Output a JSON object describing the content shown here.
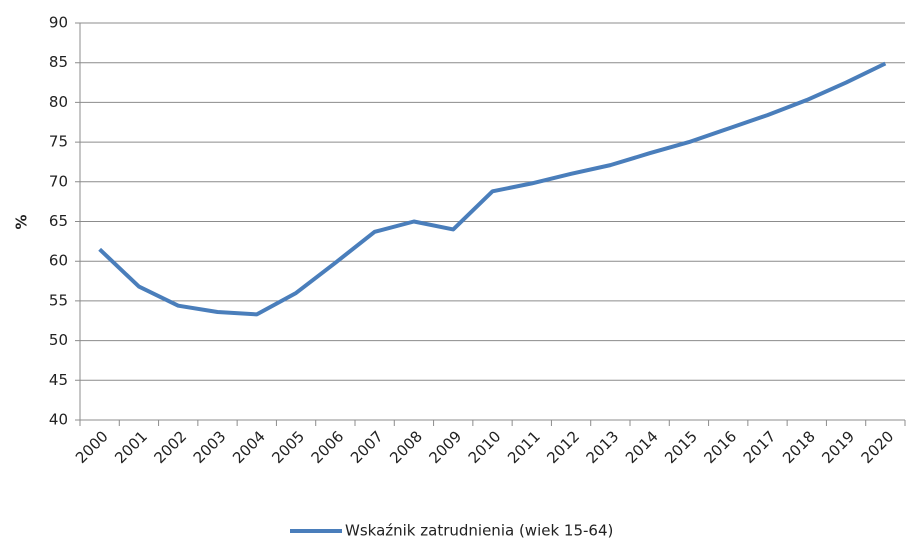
{
  "chart_data": {
    "type": "line",
    "y_label": "%",
    "categories": [
      "2000",
      "2001",
      "2002",
      "2003",
      "2004",
      "2005",
      "2006",
      "2007",
      "2008",
      "2009",
      "2010",
      "2011",
      "2012",
      "2013",
      "2014",
      "2015",
      "2016",
      "2017",
      "2018",
      "2019",
      "2020"
    ],
    "series": [
      {
        "name": "Wskaźnik zatrudnienia (wiek 15-64)",
        "color": "#4a7ebb",
        "values": [
          61.5,
          56.8,
          54.4,
          53.6,
          53.3,
          56,
          59.8,
          63.7,
          65,
          64,
          68.8,
          69.8,
          71,
          72.1,
          73.6,
          75,
          76.7,
          78.4,
          80.3,
          82.5,
          84.9
        ]
      }
    ],
    "ylim": [
      40,
      90
    ],
    "yticks": [
      40,
      45,
      50,
      55,
      60,
      65,
      70,
      75,
      80,
      85,
      90
    ],
    "grid": true,
    "legend": "bottom"
  }
}
